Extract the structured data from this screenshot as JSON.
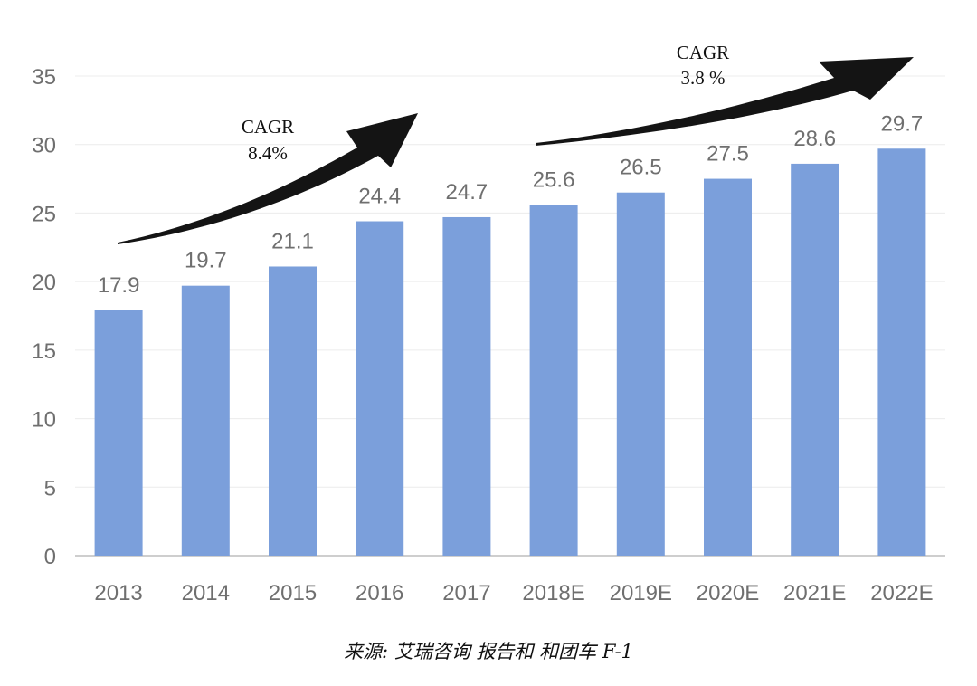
{
  "chart_data": {
    "type": "bar",
    "categories": [
      "2013",
      "2014",
      "2015",
      "2016",
      "2017",
      "2018E",
      "2019E",
      "2020E",
      "2021E",
      "2022E"
    ],
    "values": [
      17.9,
      19.7,
      21.1,
      24.4,
      24.7,
      25.6,
      26.5,
      27.5,
      28.6,
      29.7
    ],
    "ylim": [
      0,
      35
    ],
    "yticks": [
      0,
      5,
      10,
      15,
      20,
      25,
      30,
      35
    ],
    "grid": true,
    "bar_color": "#7b9fdb",
    "annotations": [
      {
        "line1": "CAGR",
        "line2": "8.4%"
      },
      {
        "line1": "CAGR",
        "line2": "3.8 %"
      }
    ]
  },
  "source": "来源: 艾瑞咨询 报告和 和团车 F-1"
}
